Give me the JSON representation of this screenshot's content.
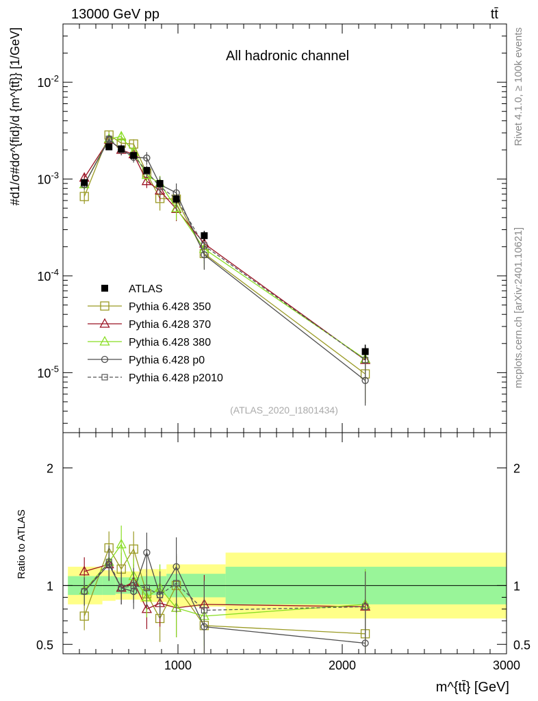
{
  "header": {
    "left": "13000 GeV pp",
    "right": "tt̄"
  },
  "side_labels": {
    "top": "Rivet 4.1.0, ≥ 100k events",
    "bottom": "mcplots.cern.ch [arXiv:2401.10621]"
  },
  "colors": {
    "atlas": "#000000",
    "p350": "#999922",
    "p370": "#991122",
    "p380": "#88dd22",
    "p0": "#4d4d4d",
    "p2010": "#555555",
    "band_inner": "#99f599",
    "band_outer": "#ffff88"
  },
  "chart_data": [
    {
      "type": "line",
      "title": "All hadronic channel",
      "analysis_id": "(ATLAS_2020_I1801434)",
      "ylabel": "#d1/σ#dσ^{fid}/d {m^{tt̄}} [1/GeV]",
      "xlim": [
        300,
        3000
      ],
      "ylim": [
        2.4e-06,
        0.04
      ],
      "yscale": "log",
      "ytick_labels": [
        "10^-5",
        "10^-4",
        "10^-3",
        "10^-2"
      ],
      "legend": {
        "placement": "lower-left",
        "entries": [
          "ATLAS",
          "Pythia 6.428 350",
          "Pythia 6.428 370",
          "Pythia 6.428 380",
          "Pythia 6.428 p0",
          "Pythia 6.428 p2010"
        ]
      },
      "atlas": {
        "x": [
          430,
          580,
          655,
          730,
          810,
          890,
          990,
          1160,
          2140
        ],
        "y": [
          0.00092,
          0.00215,
          0.00205,
          0.00175,
          0.00123,
          0.0009,
          0.00062,
          0.00026,
          1.65e-05
        ],
        "yerr_rel": [
          0.08,
          0.06,
          0.06,
          0.06,
          0.07,
          0.08,
          0.1,
          0.12,
          0.18
        ]
      },
      "series": [
        {
          "name": "Pythia 6.428 350",
          "style": "open-square",
          "line": "solid",
          "y": [
            0.00066,
            0.00285,
            0.00235,
            0.0023,
            0.00115,
            0.00063,
            0.00062,
            0.00017,
            9.7e-06
          ],
          "yerr_rel": [
            0.16,
            0.1,
            0.12,
            0.12,
            0.15,
            0.25,
            0.25,
            0.3,
            0.5
          ]
        },
        {
          "name": "Pythia 6.428 370",
          "style": "open-triangle",
          "line": "solid",
          "y": [
            0.00103,
            0.00255,
            0.002,
            0.0018,
            0.00095,
            0.00076,
            0.00049,
            0.000215,
            1.35e-05
          ],
          "yerr_rel": [
            0.12,
            0.1,
            0.12,
            0.12,
            0.15,
            0.22,
            0.25,
            0.3,
            0.35
          ]
        },
        {
          "name": "Pythia 6.428 380",
          "style": "open-triangle",
          "line": "solid",
          "y": [
            0.00088,
            0.0026,
            0.00275,
            0.0019,
            0.0011,
            0.0009,
            0.0005,
            0.00019,
            1.38e-05
          ],
          "yerr_rel": [
            0.12,
            0.1,
            0.12,
            0.12,
            0.15,
            0.2,
            0.25,
            0.3,
            0.35
          ]
        },
        {
          "name": "Pythia 6.428 p0",
          "style": "open-circle",
          "line": "solid",
          "y": [
            0.00088,
            0.00255,
            0.00202,
            0.00168,
            0.00165,
            0.00088,
            0.00072,
            0.000165,
            8.3e-06
          ],
          "yerr_rel": [
            0.12,
            0.1,
            0.12,
            0.12,
            0.15,
            0.2,
            0.25,
            0.3,
            0.45
          ]
        },
        {
          "name": "Pythia 6.428 p2010",
          "style": "open-square-small",
          "line": "dashed",
          "y": [
            0.00088,
            0.0026,
            0.002,
            0.00175,
            0.0012,
            0.00083,
            0.00063,
            0.000205,
            1.35e-05
          ],
          "yerr_rel": [
            0.12,
            0.1,
            0.12,
            0.12,
            0.15,
            0.2,
            0.25,
            0.3,
            0.35
          ]
        }
      ]
    },
    {
      "type": "line",
      "ylabel": "Ratio to ATLAS",
      "xlabel": "m^{tt̄} [GeV]",
      "xlim": [
        300,
        3000
      ],
      "ylim": [
        0.42,
        2.3
      ],
      "ytick_labels": [
        "0.5",
        "1",
        "2"
      ],
      "xtick_labels": [
        "1000",
        "2000",
        "3000"
      ],
      "bins": [
        {
          "lo": 330,
          "hi": 540,
          "inner": 0.08,
          "outer": 0.16
        },
        {
          "lo": 540,
          "hi": 620,
          "inner": 0.08,
          "outer": 0.13
        },
        {
          "lo": 620,
          "hi": 690,
          "inner": 0.07,
          "outer": 0.12
        },
        {
          "lo": 690,
          "hi": 770,
          "inner": 0.07,
          "outer": 0.12
        },
        {
          "lo": 770,
          "hi": 850,
          "inner": 0.08,
          "outer": 0.14
        },
        {
          "lo": 850,
          "hi": 930,
          "inner": 0.08,
          "outer": 0.14
        },
        {
          "lo": 930,
          "hi": 1050,
          "inner": 0.1,
          "outer": 0.18
        },
        {
          "lo": 1050,
          "hi": 1290,
          "inner": 0.1,
          "outer": 0.18
        },
        {
          "lo": 1290,
          "hi": 3000,
          "inner": 0.16,
          "outer": 0.28
        }
      ],
      "x": [
        430,
        580,
        655,
        730,
        810,
        890,
        990,
        1160,
        2140
      ],
      "series": [
        {
          "name": "Pythia 6.428 350",
          "y": [
            0.74,
            1.32,
            1.14,
            1.31,
            0.93,
            0.72,
            1.0,
            0.66,
            0.59
          ],
          "yerr": [
            0.12,
            0.14,
            0.14,
            0.15,
            0.17,
            0.2,
            0.25,
            0.25,
            0.3
          ]
        },
        {
          "name": "Pythia 6.428 370",
          "y": [
            1.12,
            1.18,
            0.98,
            1.03,
            0.8,
            0.85,
            0.81,
            0.84,
            0.82
          ],
          "yerr": [
            0.12,
            0.14,
            0.14,
            0.15,
            0.17,
            0.2,
            0.25,
            0.25,
            0.3
          ]
        },
        {
          "name": "Pythia 6.428 380",
          "y": [
            0.96,
            1.2,
            1.35,
            1.08,
            0.9,
            0.98,
            0.81,
            0.74,
            0.84
          ],
          "yerr": [
            0.12,
            0.14,
            0.16,
            0.15,
            0.17,
            0.2,
            0.25,
            0.25,
            0.3
          ]
        },
        {
          "name": "Pythia 6.428 p0",
          "y": [
            0.95,
            1.18,
            0.98,
            0.95,
            1.28,
            0.92,
            1.16,
            0.65,
            0.51
          ],
          "yerr": [
            0.12,
            0.14,
            0.14,
            0.15,
            0.17,
            0.2,
            0.25,
            0.25,
            0.3
          ]
        },
        {
          "name": "Pythia 6.428 p2010",
          "y": [
            0.95,
            1.2,
            0.98,
            1.0,
            0.98,
            0.92,
            1.02,
            0.79,
            0.82
          ],
          "yerr": [
            0.12,
            0.14,
            0.14,
            0.15,
            0.17,
            0.2,
            0.25,
            0.25,
            0.3
          ]
        }
      ]
    }
  ]
}
